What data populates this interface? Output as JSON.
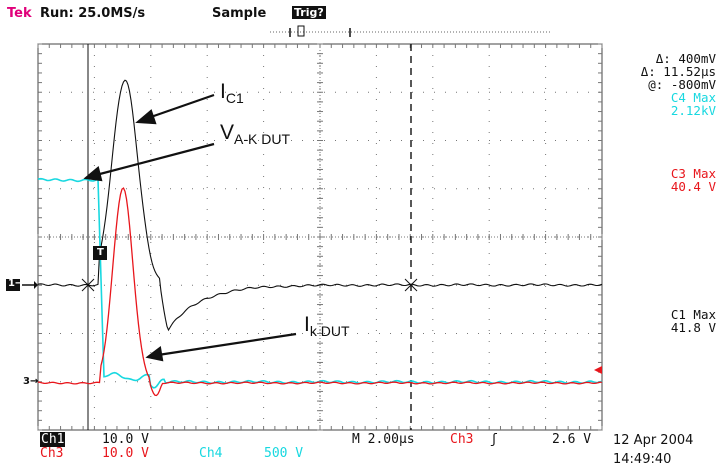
{
  "header": {
    "brand": "Tek",
    "run_status": "Run: 25.0MS/s",
    "mode": "Sample",
    "trigger_state": "Trig?"
  },
  "cursor_readout": {
    "delta_v": "Δ: 400mV",
    "delta_t": "Δ: 11.52µs",
    "at": "@: -800mV"
  },
  "measurements": [
    {
      "label": "C4 Max",
      "value": "2.12kV",
      "color": "#18d8e0"
    },
    {
      "label": "C3 Max",
      "value": "40.4 V",
      "color": "#e8161c"
    },
    {
      "label": "C1 Max",
      "value": "41.8 V",
      "color": "#111111"
    }
  ],
  "annotations": {
    "ic1": {
      "main": "I",
      "sub": "C1"
    },
    "vak": {
      "main": "V",
      "sub": "A-K DUT"
    },
    "ik": {
      "main": "I",
      "sub": "k DUT"
    }
  },
  "markers": {
    "ch1": "1→",
    "ch3": "3→",
    "trigger": "T"
  },
  "footer": {
    "ch1_label": "Ch1",
    "ch1_scale": "10.0 V",
    "ch3_label": "Ch3",
    "ch3_scale": "10.0 V",
    "ch4_label": "Ch4",
    "ch4_scale": "500 V",
    "timebase": "M 2.00µs",
    "trig_source": "Ch3",
    "trig_slope": "ʃ",
    "trig_level": "2.6 V",
    "date": "12 Apr 2004",
    "time": "14:49:40"
  },
  "colors": {
    "ch1": "#111111",
    "ch3": "#e8161c",
    "ch4": "#18d8e0",
    "brand": "#e0007a"
  }
}
